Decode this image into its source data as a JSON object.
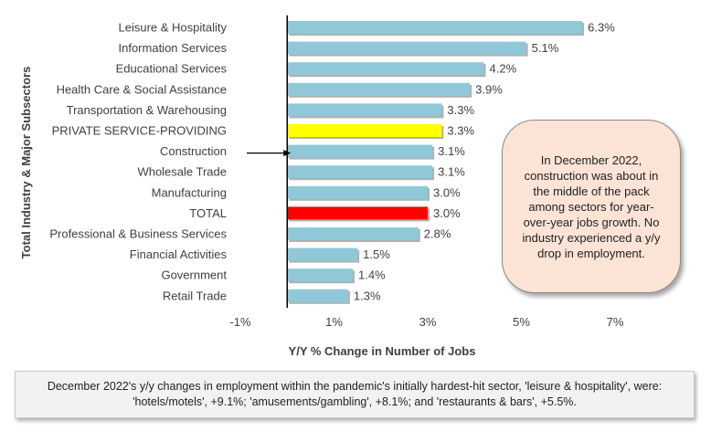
{
  "chart_data": {
    "type": "bar",
    "orientation": "horizontal",
    "categories": [
      "Leisure & Hospitality",
      "Information Services",
      "Educational Services",
      "Health Care & Social Assistance",
      "Transportation & Warehousing",
      "PRIVATE SERVICE-PROVIDING",
      "Construction",
      "Wholesale Trade",
      "Manufacturing",
      "TOTAL",
      "Professional & Business Services",
      "Financial Activities",
      "Government",
      "Retail Trade"
    ],
    "values": [
      6.3,
      5.1,
      4.2,
      3.9,
      3.3,
      3.3,
      3.1,
      3.1,
      3.0,
      3.0,
      2.8,
      1.5,
      1.4,
      1.3
    ],
    "value_labels": [
      "6.3%",
      "5.1%",
      "4.2%",
      "3.9%",
      "3.3%",
      "3.3%",
      "3.1%",
      "3.1%",
      "3.0%",
      "3.0%",
      "2.8%",
      "1.5%",
      "1.4%",
      "1.3%"
    ],
    "xlim": [
      -1,
      7
    ],
    "x_ticks": [
      -1,
      1,
      3,
      5,
      7
    ],
    "x_tick_labels": [
      "-1%",
      "1%",
      "3%",
      "5%",
      "7%"
    ],
    "xlabel": "Y/Y % Change in Number of Jobs",
    "ylabel": "Total Industry & Major Subsectors",
    "grid": false,
    "legend": "none",
    "colors": {
      "default": "#8fc8d8",
      "PRIVATE SERVICE-PROVIDING": "#ffff00",
      "TOTAL": "#ff0000"
    },
    "arrow_target": "Construction"
  },
  "callout": {
    "text": "In December 2022, construction was about in the middle of the pack among sectors for year-over-year jobs growth. No industry experienced a y/y drop in employment."
  },
  "footnote": {
    "text": "December 2022's y/y changes in employment within the pandemic's initially hardest-hit sector, 'leisure & hospitality', were: 'hotels/motels', +9.1%; 'amusements/gambling', +8.1%; and 'restaurants & bars', +5.5%."
  }
}
